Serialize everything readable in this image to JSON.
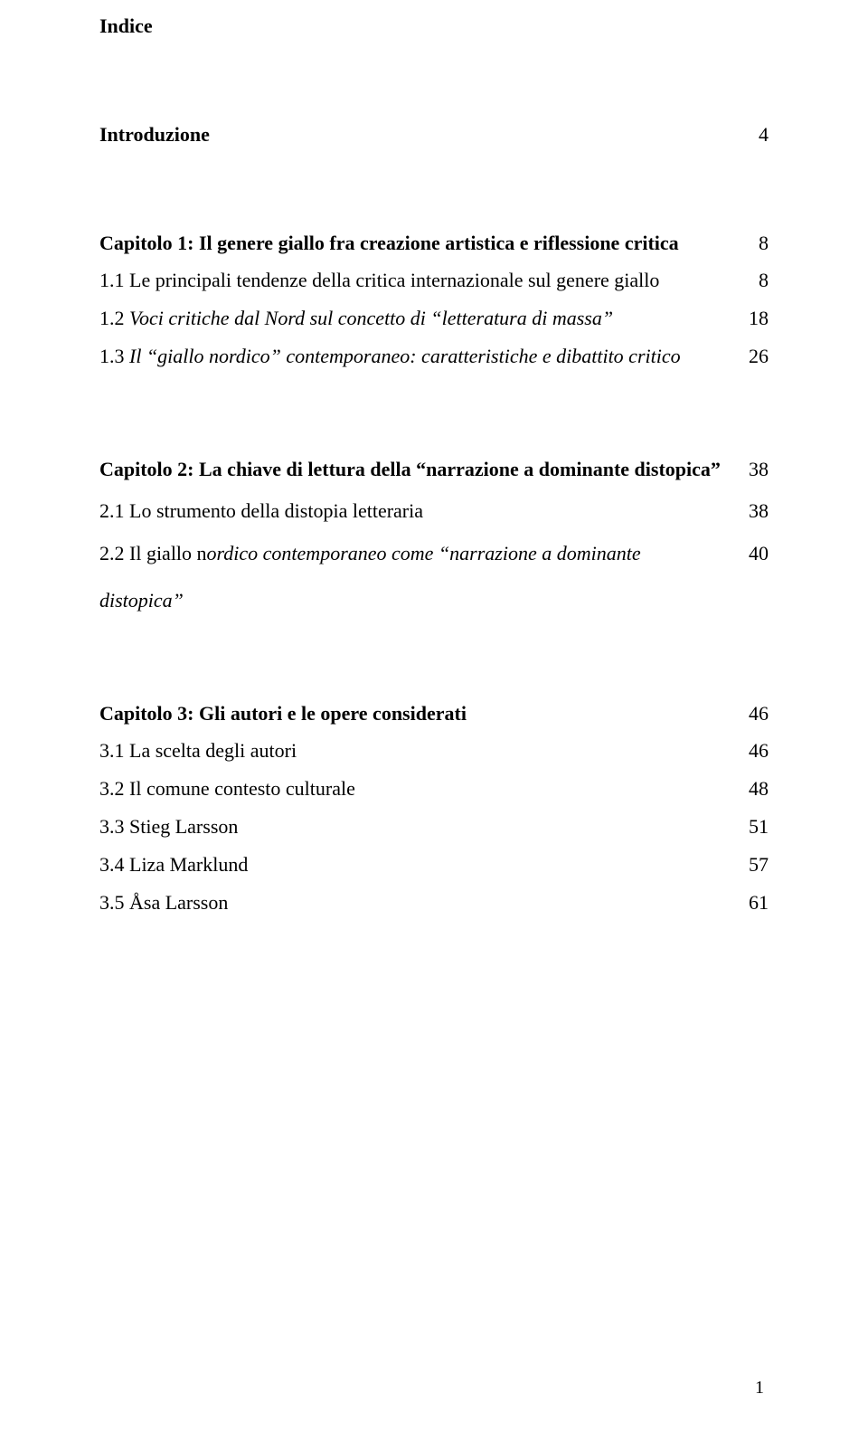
{
  "title": "Indice",
  "sections": [
    {
      "rows": [
        {
          "labelHtml": "<span class='bold'>Introduzione</span>",
          "page": "4"
        }
      ]
    },
    {
      "rows": [
        {
          "labelHtml": "<span class='bold'>Capitolo 1: Il genere giallo fra creazione artistica e riflessione critica</span>",
          "page": "8"
        },
        {
          "labelHtml": "1.1 Le principali tendenze della critica internazionale sul genere giallo",
          "page": "8"
        },
        {
          "labelHtml": "1.2 <span class='italic'>Voci critiche dal Nord sul concetto di “letteratura di massa”</span>",
          "page": "18"
        },
        {
          "labelHtml": "1.3 <span class='italic'>Il “giallo nordico” contemporaneo: caratteristiche e dibattito critico</span>",
          "page": "26"
        }
      ]
    },
    {
      "rows": [
        {
          "multi": true,
          "labelHtml": "<span class='bold'>Capitolo 2: La chiave di lettura della “narrazione a dominante distopica”</span>",
          "page": "38"
        },
        {
          "labelHtml": "2.1 Lo strumento della distopia letteraria",
          "page": "38"
        },
        {
          "multi": true,
          "labelHtml": "2.2 Il giallo n<span class='italic'>ordico contemporaneo come “narrazione a dominante distopica”</span>",
          "page": "40"
        }
      ]
    },
    {
      "rows": [
        {
          "labelHtml": "<span class='bold'>Capitolo 3: Gli autori e le opere considerati</span>",
          "page": "46"
        },
        {
          "labelHtml": "3.1 La scelta degli autori",
          "page": "46"
        },
        {
          "labelHtml": "3.2 Il comune contesto culturale",
          "page": "48"
        },
        {
          "labelHtml": "3.3 Stieg Larsson",
          "page": "51"
        },
        {
          "labelHtml": "3.4 Liza Marklund",
          "page": "57"
        },
        {
          "labelHtml": "3.5 Åsa Larsson",
          "page": "61"
        }
      ]
    }
  ],
  "pageNumber": "1"
}
